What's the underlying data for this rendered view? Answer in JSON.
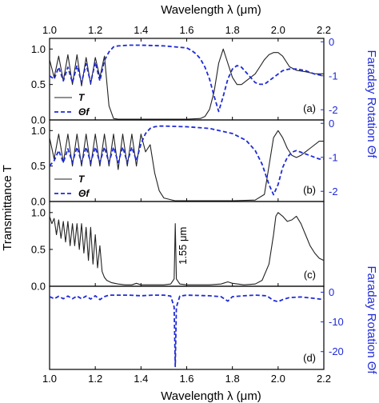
{
  "chart_data": {
    "type": "line",
    "figure": {
      "top_xlabel": "Wavelength λ (μm)",
      "bottom_xlabel": "Wavelength λ (μm)",
      "left_ylabel": "Transmittance T",
      "right_ylabel_upper": "Faraday Rotation Θf",
      "right_ylabel_lower": "Faraday Rotation Θf",
      "xlim": [
        1.0,
        2.2
      ],
      "x_ticks": [
        1.0,
        1.2,
        1.4,
        1.6,
        1.8,
        2.0,
        2.2
      ],
      "x_tick_labels": [
        "1.0",
        "1.2",
        "1.4",
        "1.6",
        "1.8",
        "2.0",
        "2.2"
      ],
      "colors": {
        "T": "#222222",
        "theta": "#1f2bd6"
      }
    },
    "panels": [
      {
        "id": "a",
        "label": "(a)",
        "left_ylim": [
          0,
          1.15
        ],
        "left_ticks": [
          0.0,
          0.5,
          1.0
        ],
        "left_tick_labels": [
          "0.0",
          "0.5",
          "1.0"
        ],
        "right_ylim": [
          -2.3,
          0.1
        ],
        "right_ticks": [
          0,
          -1,
          -2
        ],
        "right_tick_labels": [
          "0",
          "-1",
          "-2"
        ],
        "legend": [
          "T",
          "Θf"
        ],
        "series": [
          {
            "name": "T",
            "axis": "left",
            "x": [
              1.0,
              1.02,
              1.04,
              1.06,
              1.08,
              1.1,
              1.12,
              1.14,
              1.16,
              1.18,
              1.2,
              1.22,
              1.24,
              1.26,
              1.28,
              1.3,
              1.35,
              1.4,
              1.5,
              1.6,
              1.66,
              1.68,
              1.7,
              1.72,
              1.74,
              1.76,
              1.78,
              1.8,
              1.82,
              1.84,
              1.86,
              1.88,
              1.9,
              1.92,
              1.94,
              1.96,
              1.98,
              2.0,
              2.02,
              2.05,
              2.08,
              2.12,
              2.16,
              2.2
            ],
            "y": [
              0.85,
              0.6,
              0.9,
              0.55,
              0.92,
              0.5,
              0.92,
              0.48,
              0.88,
              0.5,
              0.88,
              0.6,
              0.9,
              0.2,
              0.02,
              0.01,
              0.01,
              0.01,
              0.01,
              0.01,
              0.02,
              0.05,
              0.15,
              0.4,
              0.8,
              1.0,
              0.8,
              0.6,
              0.5,
              0.5,
              0.55,
              0.6,
              0.65,
              0.75,
              0.85,
              0.92,
              0.95,
              0.95,
              0.9,
              0.75,
              0.7,
              0.68,
              0.65,
              0.65
            ]
          },
          {
            "name": "Θf",
            "axis": "right",
            "x": [
              1.0,
              1.02,
              1.04,
              1.06,
              1.08,
              1.1,
              1.12,
              1.14,
              1.16,
              1.18,
              1.2,
              1.22,
              1.24,
              1.26,
              1.28,
              1.3,
              1.35,
              1.4,
              1.5,
              1.6,
              1.62,
              1.64,
              1.66,
              1.68,
              1.7,
              1.72,
              1.74,
              1.76,
              1.78,
              1.8,
              1.82,
              1.84,
              1.86,
              1.88,
              1.9,
              1.92,
              1.94,
              1.96,
              1.98,
              2.0,
              2.02,
              2.05,
              2.08,
              2.12,
              2.16,
              2.2
            ],
            "y": [
              -1.0,
              -1.1,
              -0.75,
              -1.15,
              -0.75,
              -1.2,
              -0.7,
              -1.2,
              -0.65,
              -1.2,
              -0.6,
              -1.15,
              -0.55,
              -0.3,
              -0.15,
              -0.12,
              -0.1,
              -0.1,
              -0.12,
              -0.18,
              -0.25,
              -0.35,
              -0.5,
              -0.75,
              -1.1,
              -1.6,
              -2.05,
              -1.6,
              -1.1,
              -0.8,
              -0.7,
              -0.75,
              -0.9,
              -1.05,
              -1.2,
              -1.25,
              -1.25,
              -1.15,
              -1.05,
              -0.95,
              -0.85,
              -0.8,
              -0.8,
              -0.85,
              -0.95,
              -1.0
            ]
          }
        ]
      },
      {
        "id": "b",
        "label": "(b)",
        "left_ylim": [
          0,
          1.15
        ],
        "left_ticks": [
          0.0,
          0.5,
          1.0
        ],
        "left_tick_labels": [
          "0.0",
          "0.5",
          "1.0"
        ],
        "right_ylim": [
          -2.3,
          0.1
        ],
        "right_ticks": [
          0,
          -1,
          -2
        ],
        "right_tick_labels": [
          "0",
          "-1",
          "-2"
        ],
        "legend": [
          "T",
          "Θf"
        ],
        "series": [
          {
            "name": "T",
            "axis": "left",
            "x": [
              1.0,
              1.02,
              1.04,
              1.06,
              1.08,
              1.1,
              1.12,
              1.14,
              1.16,
              1.18,
              1.2,
              1.22,
              1.24,
              1.26,
              1.28,
              1.3,
              1.32,
              1.34,
              1.36,
              1.38,
              1.4,
              1.42,
              1.44,
              1.46,
              1.48,
              1.5,
              1.55,
              1.6,
              1.7,
              1.8,
              1.9,
              1.94,
              1.96,
              1.98,
              2.0,
              2.02,
              2.04,
              2.06,
              2.08,
              2.1,
              2.14,
              2.18,
              2.2
            ],
            "y": [
              0.9,
              0.6,
              0.95,
              0.55,
              0.95,
              0.5,
              0.95,
              0.5,
              0.95,
              0.5,
              0.95,
              0.5,
              0.95,
              0.5,
              0.95,
              0.45,
              0.95,
              0.5,
              0.95,
              0.5,
              0.95,
              0.7,
              0.8,
              0.4,
              0.15,
              0.05,
              0.01,
              0.01,
              0.01,
              0.01,
              0.02,
              0.1,
              0.5,
              0.9,
              1.0,
              0.9,
              0.75,
              0.65,
              0.62,
              0.65,
              0.75,
              0.85,
              0.85
            ]
          },
          {
            "name": "Θf",
            "axis": "right",
            "x": [
              1.0,
              1.02,
              1.04,
              1.06,
              1.08,
              1.1,
              1.12,
              1.14,
              1.16,
              1.18,
              1.2,
              1.22,
              1.24,
              1.26,
              1.28,
              1.3,
              1.32,
              1.34,
              1.36,
              1.38,
              1.4,
              1.42,
              1.44,
              1.46,
              1.48,
              1.5,
              1.6,
              1.7,
              1.8,
              1.86,
              1.9,
              1.93,
              1.96,
              1.98,
              2.0,
              2.02,
              2.04,
              2.06,
              2.08,
              2.1,
              2.14,
              2.18,
              2.2
            ],
            "y": [
              -1.25,
              -1.1,
              -0.8,
              -1.15,
              -0.75,
              -1.15,
              -0.7,
              -1.15,
              -0.7,
              -1.15,
              -0.7,
              -1.15,
              -0.7,
              -1.15,
              -0.7,
              -1.15,
              -0.7,
              -1.15,
              -0.7,
              -1.1,
              -0.6,
              -0.3,
              -0.15,
              -0.1,
              -0.08,
              -0.08,
              -0.1,
              -0.15,
              -0.3,
              -0.5,
              -0.8,
              -1.2,
              -1.8,
              -2.1,
              -1.8,
              -1.3,
              -1.0,
              -0.85,
              -0.8,
              -0.85,
              -0.95,
              -1.05,
              -1.05
            ]
          }
        ]
      },
      {
        "id": "c",
        "label": "(c)",
        "left_ylim": [
          0,
          1.15
        ],
        "left_ticks": [
          0.0,
          0.5,
          1.0
        ],
        "left_tick_labels": [
          "0.0",
          "0.5",
          "1.0"
        ],
        "annotation": {
          "text": "1.55 μm",
          "x": 1.57,
          "y": 0.55
        },
        "series": [
          {
            "name": "T",
            "axis": "left",
            "x": [
              1.0,
              1.01,
              1.02,
              1.03,
              1.04,
              1.05,
              1.06,
              1.07,
              1.08,
              1.09,
              1.1,
              1.11,
              1.12,
              1.13,
              1.14,
              1.15,
              1.16,
              1.17,
              1.18,
              1.19,
              1.2,
              1.21,
              1.22,
              1.23,
              1.24,
              1.25,
              1.27,
              1.3,
              1.33,
              1.36,
              1.38,
              1.4,
              1.45,
              1.5,
              1.53,
              1.545,
              1.55,
              1.555,
              1.57,
              1.6,
              1.7,
              1.75,
              1.78,
              1.8,
              1.85,
              1.9,
              1.93,
              1.96,
              1.98,
              1.99,
              2.0,
              2.02,
              2.04,
              2.06,
              2.08,
              2.1,
              2.12,
              2.14,
              2.16,
              2.18,
              2.2
            ],
            "y": [
              0.95,
              0.85,
              0.92,
              0.7,
              0.9,
              0.65,
              0.88,
              0.6,
              0.88,
              0.55,
              0.85,
              0.55,
              0.85,
              0.5,
              0.85,
              0.45,
              0.8,
              0.35,
              0.8,
              0.3,
              0.7,
              0.25,
              0.55,
              0.2,
              0.12,
              0.08,
              0.05,
              0.03,
              0.02,
              0.02,
              0.04,
              0.02,
              0.02,
              0.02,
              0.03,
              0.1,
              0.85,
              0.1,
              0.03,
              0.02,
              0.02,
              0.03,
              0.06,
              0.04,
              0.02,
              0.03,
              0.08,
              0.3,
              0.7,
              0.95,
              1.0,
              0.95,
              0.88,
              0.9,
              0.95,
              0.85,
              0.7,
              0.55,
              0.45,
              0.38,
              0.35
            ]
          }
        ]
      },
      {
        "id": "d",
        "label": "(d)",
        "right_ylim": [
          -26,
          2
        ],
        "right_ticks": [
          0,
          -10,
          -20
        ],
        "right_tick_labels": [
          "0",
          "-10",
          "-20"
        ],
        "series": [
          {
            "name": "Θf",
            "axis": "right",
            "x": [
              1.0,
              1.02,
              1.04,
              1.06,
              1.08,
              1.1,
              1.12,
              1.14,
              1.16,
              1.18,
              1.2,
              1.22,
              1.24,
              1.26,
              1.3,
              1.35,
              1.4,
              1.45,
              1.5,
              1.53,
              1.545,
              1.55,
              1.555,
              1.57,
              1.6,
              1.7,
              1.75,
              1.78,
              1.8,
              1.85,
              1.9,
              1.95,
              1.98,
              2.0,
              2.02,
              2.05,
              2.1,
              2.15,
              2.2
            ],
            "y": [
              -1.5,
              -2.2,
              -1.4,
              -2.2,
              -1.3,
              -2.2,
              -1.3,
              -2.2,
              -1.3,
              -2.3,
              -1.2,
              -2.5,
              -1.5,
              -1.0,
              -1.0,
              -1.0,
              -1.2,
              -1.0,
              -1.0,
              -1.3,
              -5,
              -25,
              -5,
              -1.3,
              -1.0,
              -1.2,
              -1.5,
              -3.0,
              -1.5,
              -1.2,
              -1.0,
              -1.2,
              -2.8,
              -3.2,
              -2.5,
              -1.8,
              -1.6,
              -2.0,
              -2.5
            ]
          }
        ]
      }
    ]
  }
}
